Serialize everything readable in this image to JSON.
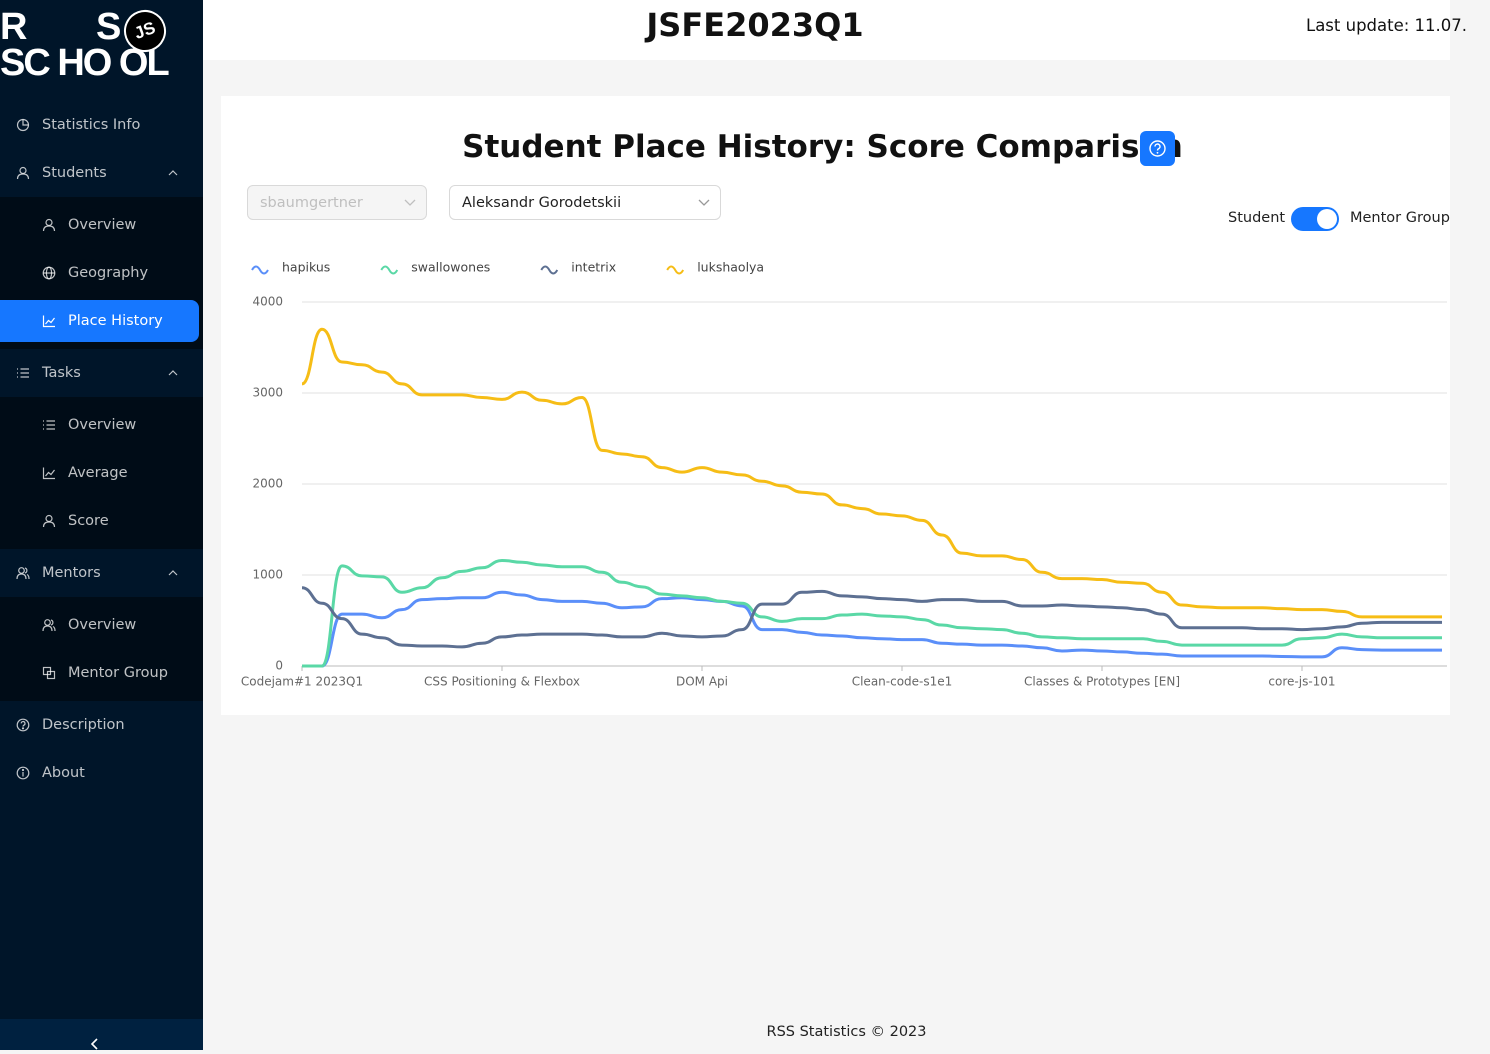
{
  "sidebar": {
    "logo": {
      "r": "R",
      "s": "S",
      "line2": "SC HO OL",
      "badge": "JS"
    },
    "menu": [
      {
        "label": "Statistics Info",
        "icon": "pie"
      },
      {
        "label": "Students",
        "icon": "user",
        "expanded": true,
        "children": [
          {
            "label": "Overview",
            "icon": "user"
          },
          {
            "label": "Geography",
            "icon": "globe"
          },
          {
            "label": "Place History",
            "icon": "chart",
            "selected": true
          }
        ]
      },
      {
        "label": "Tasks",
        "icon": "list",
        "expanded": true,
        "children": [
          {
            "label": "Overview",
            "icon": "list"
          },
          {
            "label": "Average",
            "icon": "chart"
          },
          {
            "label": "Score",
            "icon": "user"
          }
        ]
      },
      {
        "label": "Mentors",
        "icon": "users",
        "expanded": true,
        "children": [
          {
            "label": "Overview",
            "icon": "users"
          },
          {
            "label": "Mentor Group",
            "icon": "group"
          }
        ]
      },
      {
        "label": "Description",
        "icon": "question"
      },
      {
        "label": "About",
        "icon": "info"
      }
    ]
  },
  "header": {
    "title": "JSFE2023Q1",
    "last_update": "Last update: 11.07."
  },
  "controls": {
    "student_select": "sbaumgertner",
    "mentor_select": "Aleksandr Gorodetskii",
    "toggle_left": "Student",
    "toggle_right": "Mentor Group",
    "toggle_on": true
  },
  "chart_data": {
    "type": "line",
    "title": "Student Place History: Score Comparison",
    "categories": [
      "Codejam#1 2023Q1",
      null,
      null,
      null,
      null,
      null,
      null,
      null,
      null,
      null,
      "CSS Positioning & Flexbox",
      null,
      null,
      null,
      null,
      null,
      null,
      null,
      null,
      null,
      "DOM Api",
      null,
      null,
      null,
      null,
      null,
      null,
      null,
      null,
      null,
      "Clean-code-s1e1",
      null,
      null,
      null,
      null,
      null,
      null,
      null,
      null,
      null,
      "Classes & Prototypes [EN]",
      null,
      null,
      null,
      null,
      null,
      null,
      null,
      null,
      null,
      "core-js-101",
      null,
      null,
      null,
      null,
      null,
      null,
      null
    ],
    "series": [
      {
        "name": "hapikus",
        "color": "#5b8ff9",
        "values": [
          0,
          0,
          570,
          570,
          530,
          620,
          730,
          740,
          750,
          750,
          810,
          780,
          730,
          710,
          710,
          690,
          640,
          650,
          740,
          750,
          730,
          710,
          660,
          400,
          400,
          370,
          340,
          330,
          310,
          300,
          290,
          290,
          250,
          240,
          230,
          230,
          220,
          200,
          165,
          175,
          165,
          155,
          140,
          130,
          110,
          110,
          110,
          110,
          110,
          105,
          100,
          100,
          200,
          180,
          175,
          175,
          175,
          175
        ]
      },
      {
        "name": "swallowones",
        "color": "#5ad8a6",
        "values": [
          0,
          0,
          1100,
          990,
          980,
          810,
          860,
          970,
          1040,
          1080,
          1160,
          1140,
          1110,
          1090,
          1090,
          1030,
          920,
          870,
          790,
          770,
          750,
          710,
          690,
          540,
          490,
          520,
          520,
          560,
          570,
          550,
          540,
          510,
          450,
          420,
          410,
          400,
          360,
          320,
          310,
          300,
          300,
          300,
          300,
          270,
          230,
          230,
          230,
          230,
          230,
          230,
          300,
          310,
          350,
          320,
          310,
          310,
          310,
          310
        ]
      },
      {
        "name": "intetrix",
        "color": "#5d7092",
        "values": [
          860,
          690,
          520,
          350,
          310,
          230,
          220,
          220,
          210,
          250,
          320,
          340,
          350,
          350,
          350,
          340,
          320,
          320,
          360,
          330,
          320,
          330,
          400,
          680,
          680,
          810,
          820,
          770,
          760,
          740,
          730,
          710,
          730,
          730,
          710,
          710,
          660,
          660,
          670,
          660,
          650,
          640,
          620,
          570,
          420,
          420,
          420,
          420,
          410,
          410,
          400,
          410,
          430,
          470,
          480,
          480,
          480,
          480
        ]
      },
      {
        "name": "lukshaolya",
        "color": "#f6bd16",
        "values": [
          3100,
          3700,
          3340,
          3310,
          3230,
          3100,
          2980,
          2980,
          2980,
          2950,
          2930,
          3010,
          2920,
          2880,
          2950,
          2370,
          2330,
          2300,
          2180,
          2130,
          2180,
          2130,
          2100,
          2030,
          1980,
          1910,
          1890,
          1770,
          1730,
          1670,
          1650,
          1600,
          1440,
          1240,
          1210,
          1210,
          1170,
          1030,
          960,
          960,
          950,
          920,
          910,
          810,
          670,
          650,
          640,
          640,
          640,
          630,
          620,
          620,
          600,
          540,
          540,
          540,
          540,
          540
        ]
      }
    ],
    "ylim": [
      0,
      4000
    ],
    "yticks": [
      0,
      1000,
      2000,
      3000,
      4000
    ],
    "grid": true,
    "legend": "top-left"
  },
  "footer": {
    "text": "RSS Statistics © 2023"
  }
}
